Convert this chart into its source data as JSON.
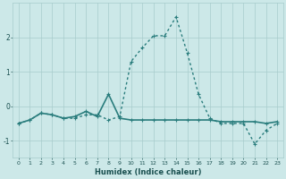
{
  "x": [
    0,
    1,
    2,
    3,
    4,
    5,
    6,
    7,
    8,
    9,
    10,
    11,
    12,
    13,
    14,
    15,
    16,
    17,
    18,
    19,
    20,
    21,
    22,
    23
  ],
  "y_main": [
    -0.5,
    -0.4,
    -0.2,
    -0.25,
    -0.35,
    -0.35,
    -0.25,
    -0.25,
    -0.4,
    -0.3,
    1.3,
    1.7,
    2.05,
    2.05,
    2.6,
    1.55,
    0.35,
    -0.35,
    -0.5,
    -0.5,
    -0.5,
    -1.1,
    -0.7,
    -0.5
  ],
  "y_flat": [
    -0.5,
    -0.4,
    -0.2,
    -0.25,
    -0.35,
    -0.3,
    -0.15,
    -0.3,
    0.35,
    -0.35,
    -0.4,
    -0.4,
    -0.4,
    -0.4,
    -0.4,
    -0.4,
    -0.4,
    -0.4,
    -0.45,
    -0.45,
    -0.45,
    -0.45,
    -0.5,
    -0.45
  ],
  "line_color": "#2a7d7d",
  "bg_color": "#cce8e8",
  "grid_color": "#a8cccc",
  "xlabel": "Humidex (Indice chaleur)",
  "xlim": [
    -0.5,
    23.5
  ],
  "ylim": [
    -1.5,
    3.0
  ],
  "yticks": [
    -1,
    0,
    1,
    2
  ],
  "xticks": [
    0,
    1,
    2,
    3,
    4,
    5,
    6,
    7,
    8,
    9,
    10,
    11,
    12,
    13,
    14,
    15,
    16,
    17,
    18,
    19,
    20,
    21,
    22,
    23
  ]
}
